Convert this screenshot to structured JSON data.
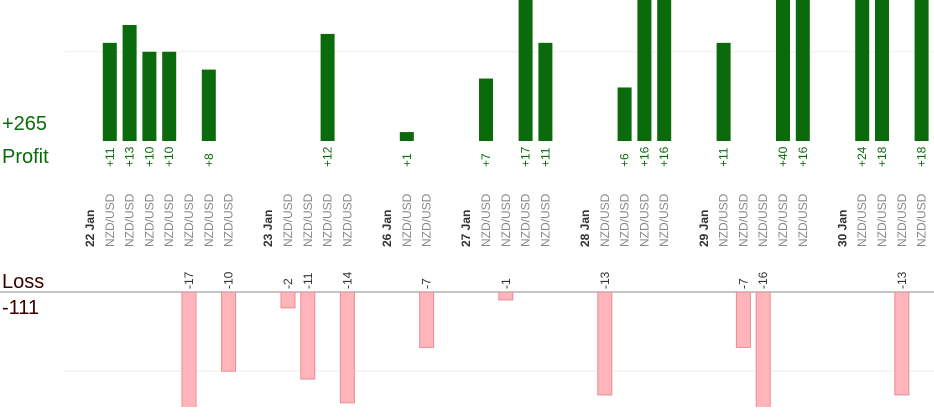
{
  "chart_data": {
    "type": "bar",
    "profit_total": "+265",
    "profit_title": "Profit",
    "loss_title": "Loss",
    "loss_total": "-111",
    "profit_color": "#0b6a0b",
    "loss_color": "#ffb5ba",
    "profit_ylim": [
      0,
      15.8
    ],
    "loss_ylim": [
      -14.4,
      0
    ],
    "profit_gridlines": [
      10
    ],
    "loss_gridlines": [
      -10
    ],
    "groups": [
      {
        "date": "22 Jan",
        "pairs": [
          "NZD/USD",
          "NZD/USD",
          "NZD/USD",
          "NZD/USD",
          "NZD/USD",
          "NZD/USD",
          "NZD/USD"
        ],
        "profit": [
          11,
          13,
          10,
          10,
          null,
          8,
          null
        ],
        "profit_labels": [
          "+11",
          "+13",
          "+10",
          "+10",
          null,
          "+8",
          null
        ],
        "loss": [
          null,
          null,
          null,
          null,
          -17,
          null,
          -10
        ]
      },
      {
        "date": "23 Jan",
        "pairs": [
          "NZD/USD",
          "NZD/USD",
          "NZD/USD",
          "NZD/USD"
        ],
        "profit": [
          null,
          null,
          12,
          null
        ],
        "profit_labels": [
          null,
          null,
          "+12",
          null
        ],
        "loss": [
          -2,
          -11,
          null,
          -14
        ]
      },
      {
        "date": "26 Jan",
        "pairs": [
          "NZD/USD",
          "NZD/USD"
        ],
        "profit": [
          1,
          null
        ],
        "profit_labels": [
          "+1",
          null
        ],
        "loss": [
          null,
          -7
        ]
      },
      {
        "date": "27 Jan",
        "pairs": [
          "NZD/USD",
          "NZD/USD",
          "NZD/USD",
          "NZD/USD"
        ],
        "profit": [
          7,
          null,
          17,
          11
        ],
        "profit_labels": [
          "+7",
          null,
          "+17",
          "+11"
        ],
        "loss": [
          null,
          -1,
          null,
          null
        ]
      },
      {
        "date": "28 Jan",
        "pairs": [
          "NZD/USD",
          "NZD/USD",
          "NZD/USD",
          "NZD/USD"
        ],
        "profit": [
          null,
          6,
          16,
          16
        ],
        "profit_labels": [
          null,
          "+6",
          "+16",
          "+16"
        ],
        "loss": [
          -13,
          null,
          null,
          null
        ]
      },
      {
        "date": "29 Jan",
        "pairs": [
          "NZD/USD",
          "NZD/USD",
          "NZD/USD",
          "NZD/USD",
          "NZD/USD"
        ],
        "profit": [
          11,
          null,
          null,
          40,
          16
        ],
        "profit_labels": [
          "+11",
          null,
          null,
          "+40",
          "+16"
        ],
        "loss": [
          null,
          -7,
          -16,
          null,
          null
        ]
      },
      {
        "date": "30 Jan",
        "pairs": [
          "NZD/USD",
          "NZD/USD",
          "NZD/USD",
          "NZD/USD"
        ],
        "profit": [
          24,
          18,
          null,
          18
        ],
        "profit_labels": [
          "+24",
          "+18",
          null,
          "+18"
        ],
        "loss": [
          null,
          null,
          -13,
          null
        ]
      }
    ]
  }
}
